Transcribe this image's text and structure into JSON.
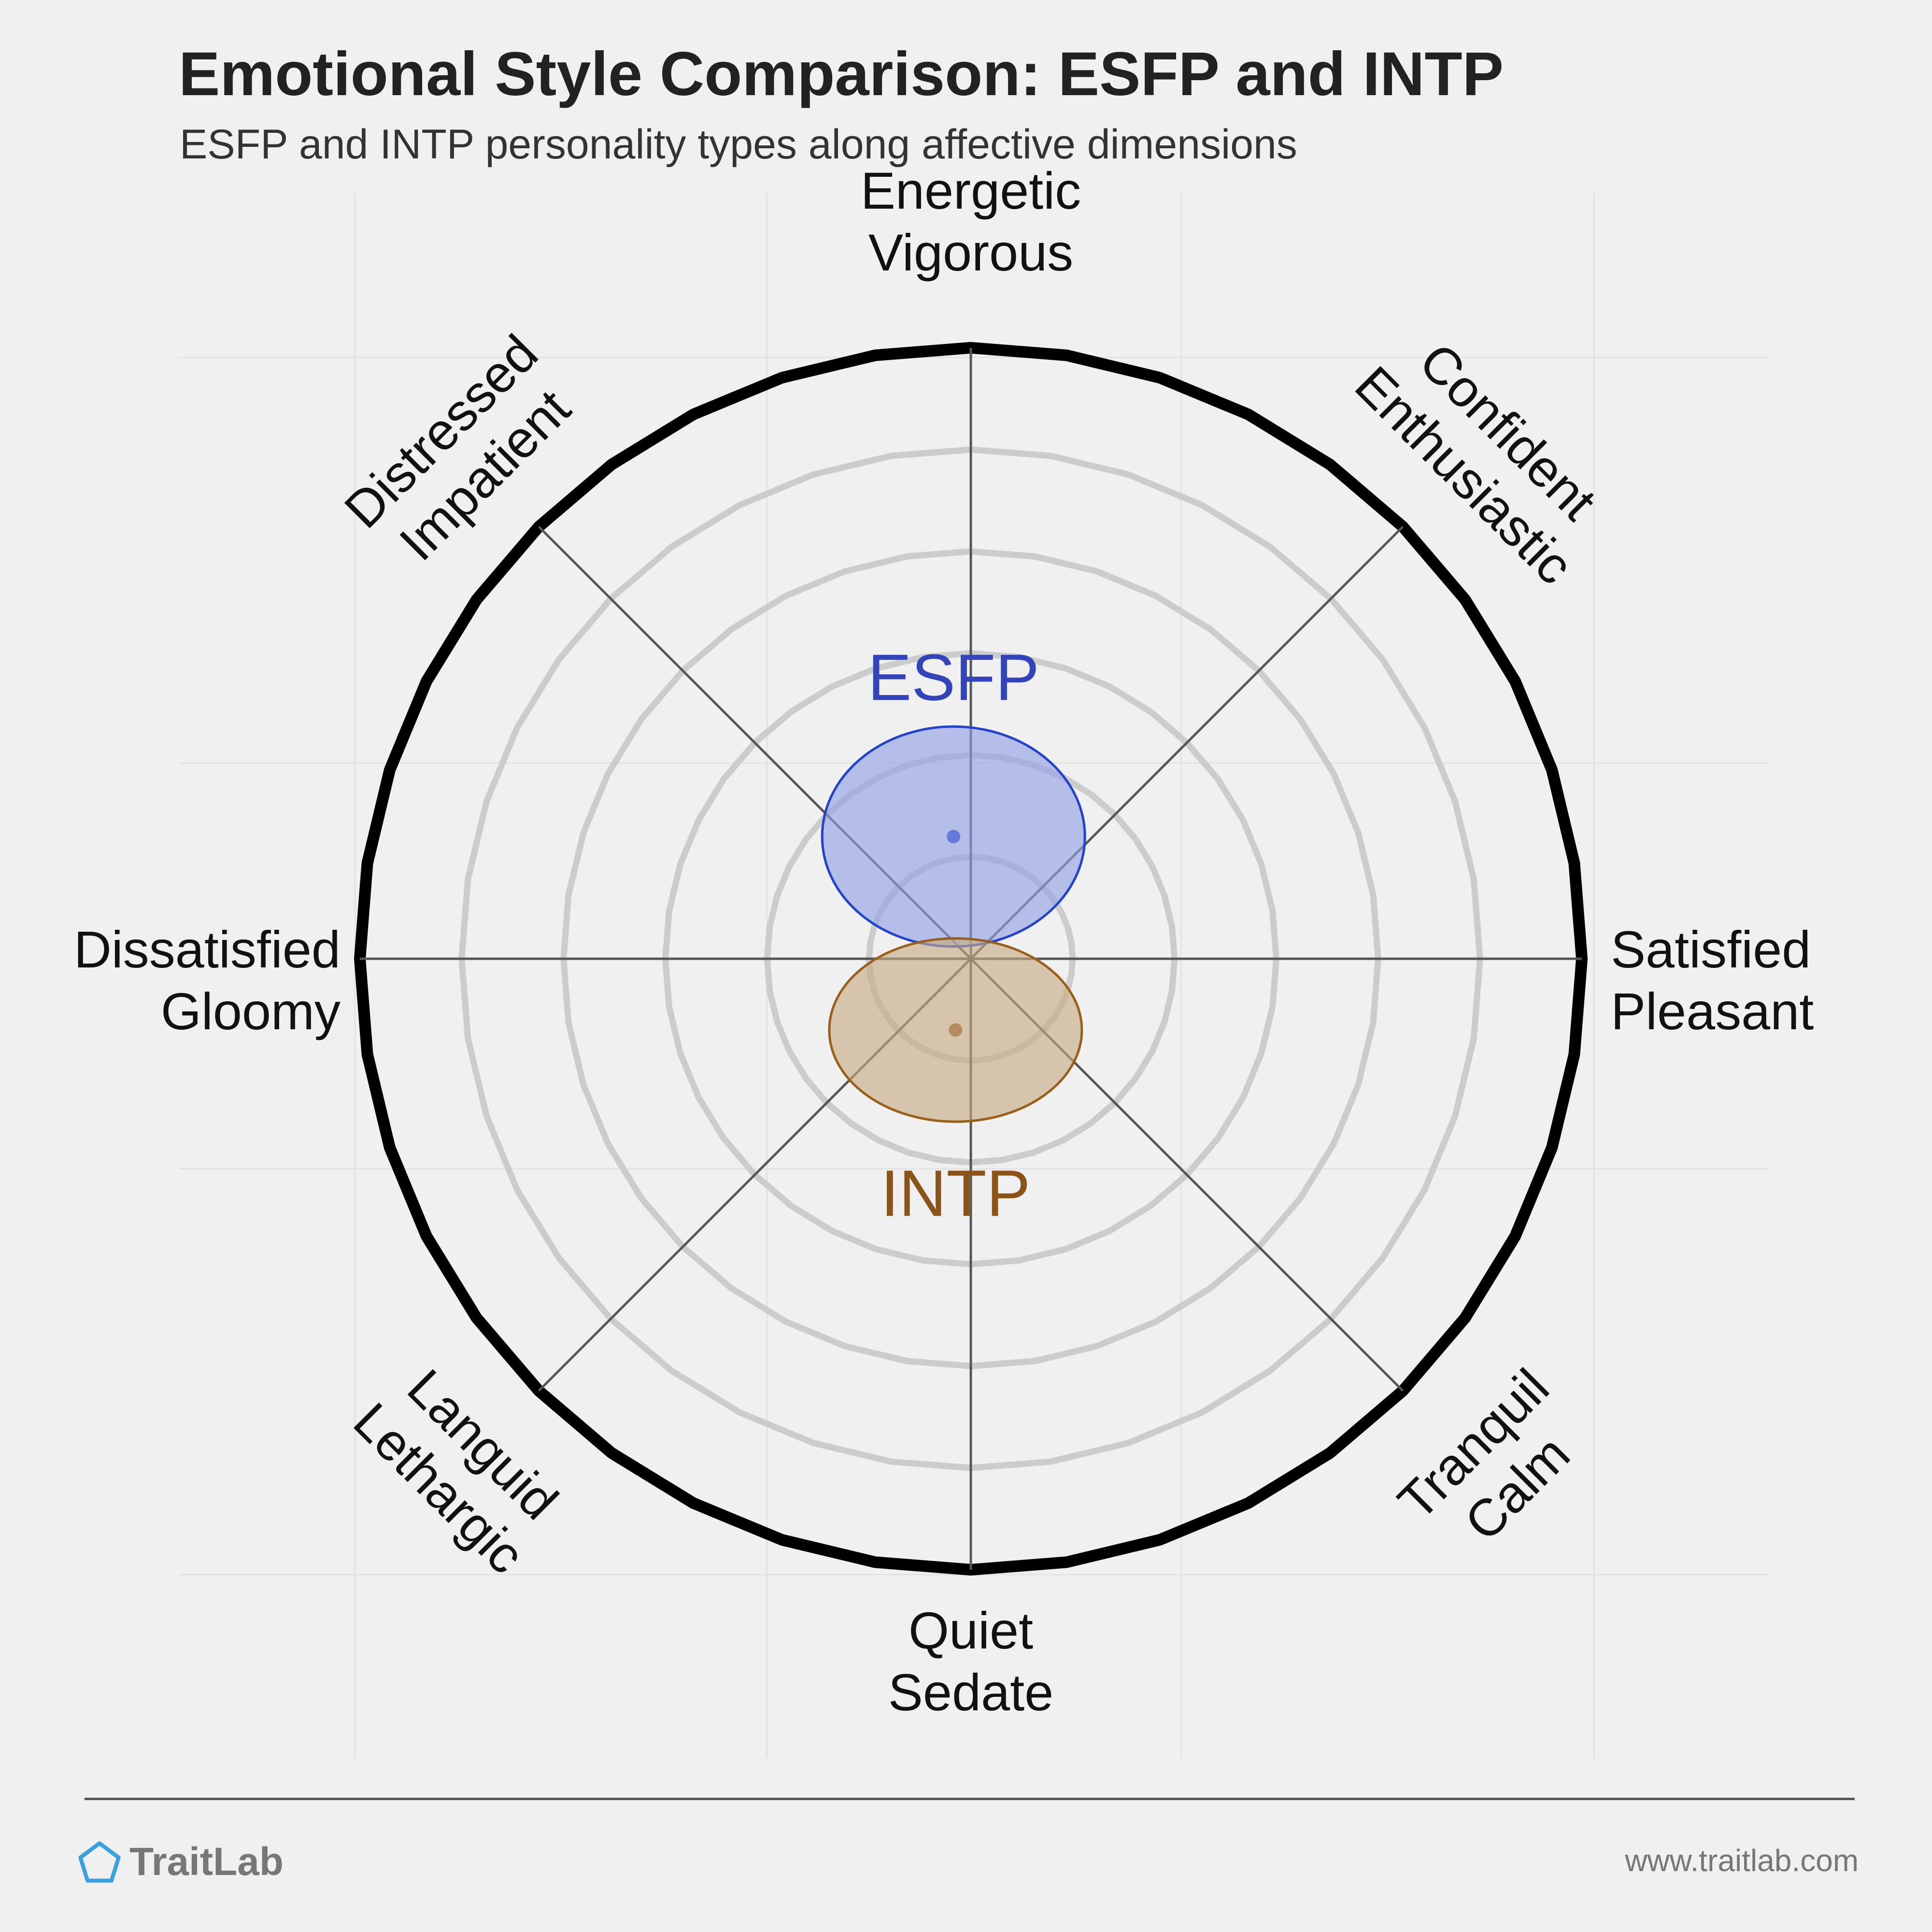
{
  "header": {
    "title": "Emotional Style Comparison: ESFP and INTP",
    "subtitle": "ESFP and INTP personality types along affective dimensions"
  },
  "footer": {
    "brand": "TraitLab",
    "url": "www.traitlab.com"
  },
  "colors": {
    "background": "#f0f0f0",
    "outer_ring": "#000000",
    "inner_rings": "#cccccc",
    "axes": "#555555",
    "esfp_fill": "#8fa0e3",
    "esfp_stroke": "#2244cc",
    "esfp_label": "#3344bb",
    "intp_fill": "#c8a983",
    "intp_stroke": "#99601c",
    "intp_label": "#8a5418"
  },
  "chart_data": {
    "type": "polar",
    "grid": true,
    "rings": 6,
    "range": [
      -6,
      6
    ],
    "axes": [
      {
        "direction": "top",
        "label": [
          "Energetic",
          "Vigorous"
        ]
      },
      {
        "direction": "top-right",
        "label": [
          "Confident",
          "Enthusiastic"
        ]
      },
      {
        "direction": "right",
        "label": [
          "Satisfied",
          "Pleasant"
        ]
      },
      {
        "direction": "bottom-right",
        "label": [
          "Tranquil",
          "Calm"
        ]
      },
      {
        "direction": "bottom",
        "label": [
          "Quiet",
          "Sedate"
        ]
      },
      {
        "direction": "bottom-left",
        "label": [
          "Languid",
          "Lethargic"
        ]
      },
      {
        "direction": "left",
        "label": [
          "Dissatisfied",
          "Gloomy"
        ]
      },
      {
        "direction": "top-left",
        "label": [
          "Distressed",
          "Impatient"
        ]
      }
    ],
    "series": [
      {
        "name": "ESFP",
        "x": -0.17,
        "y": 1.2,
        "spread_x": 1.29,
        "spread_y": 1.08,
        "fill": "#8fa0e3",
        "stroke": "#2244cc",
        "label_color": "#3344bb"
      },
      {
        "name": "INTP",
        "x": -0.15,
        "y": -0.7,
        "spread_x": 1.24,
        "spread_y": 0.9,
        "fill": "#c8a983",
        "stroke": "#99601c",
        "label_color": "#8a5418"
      }
    ]
  }
}
